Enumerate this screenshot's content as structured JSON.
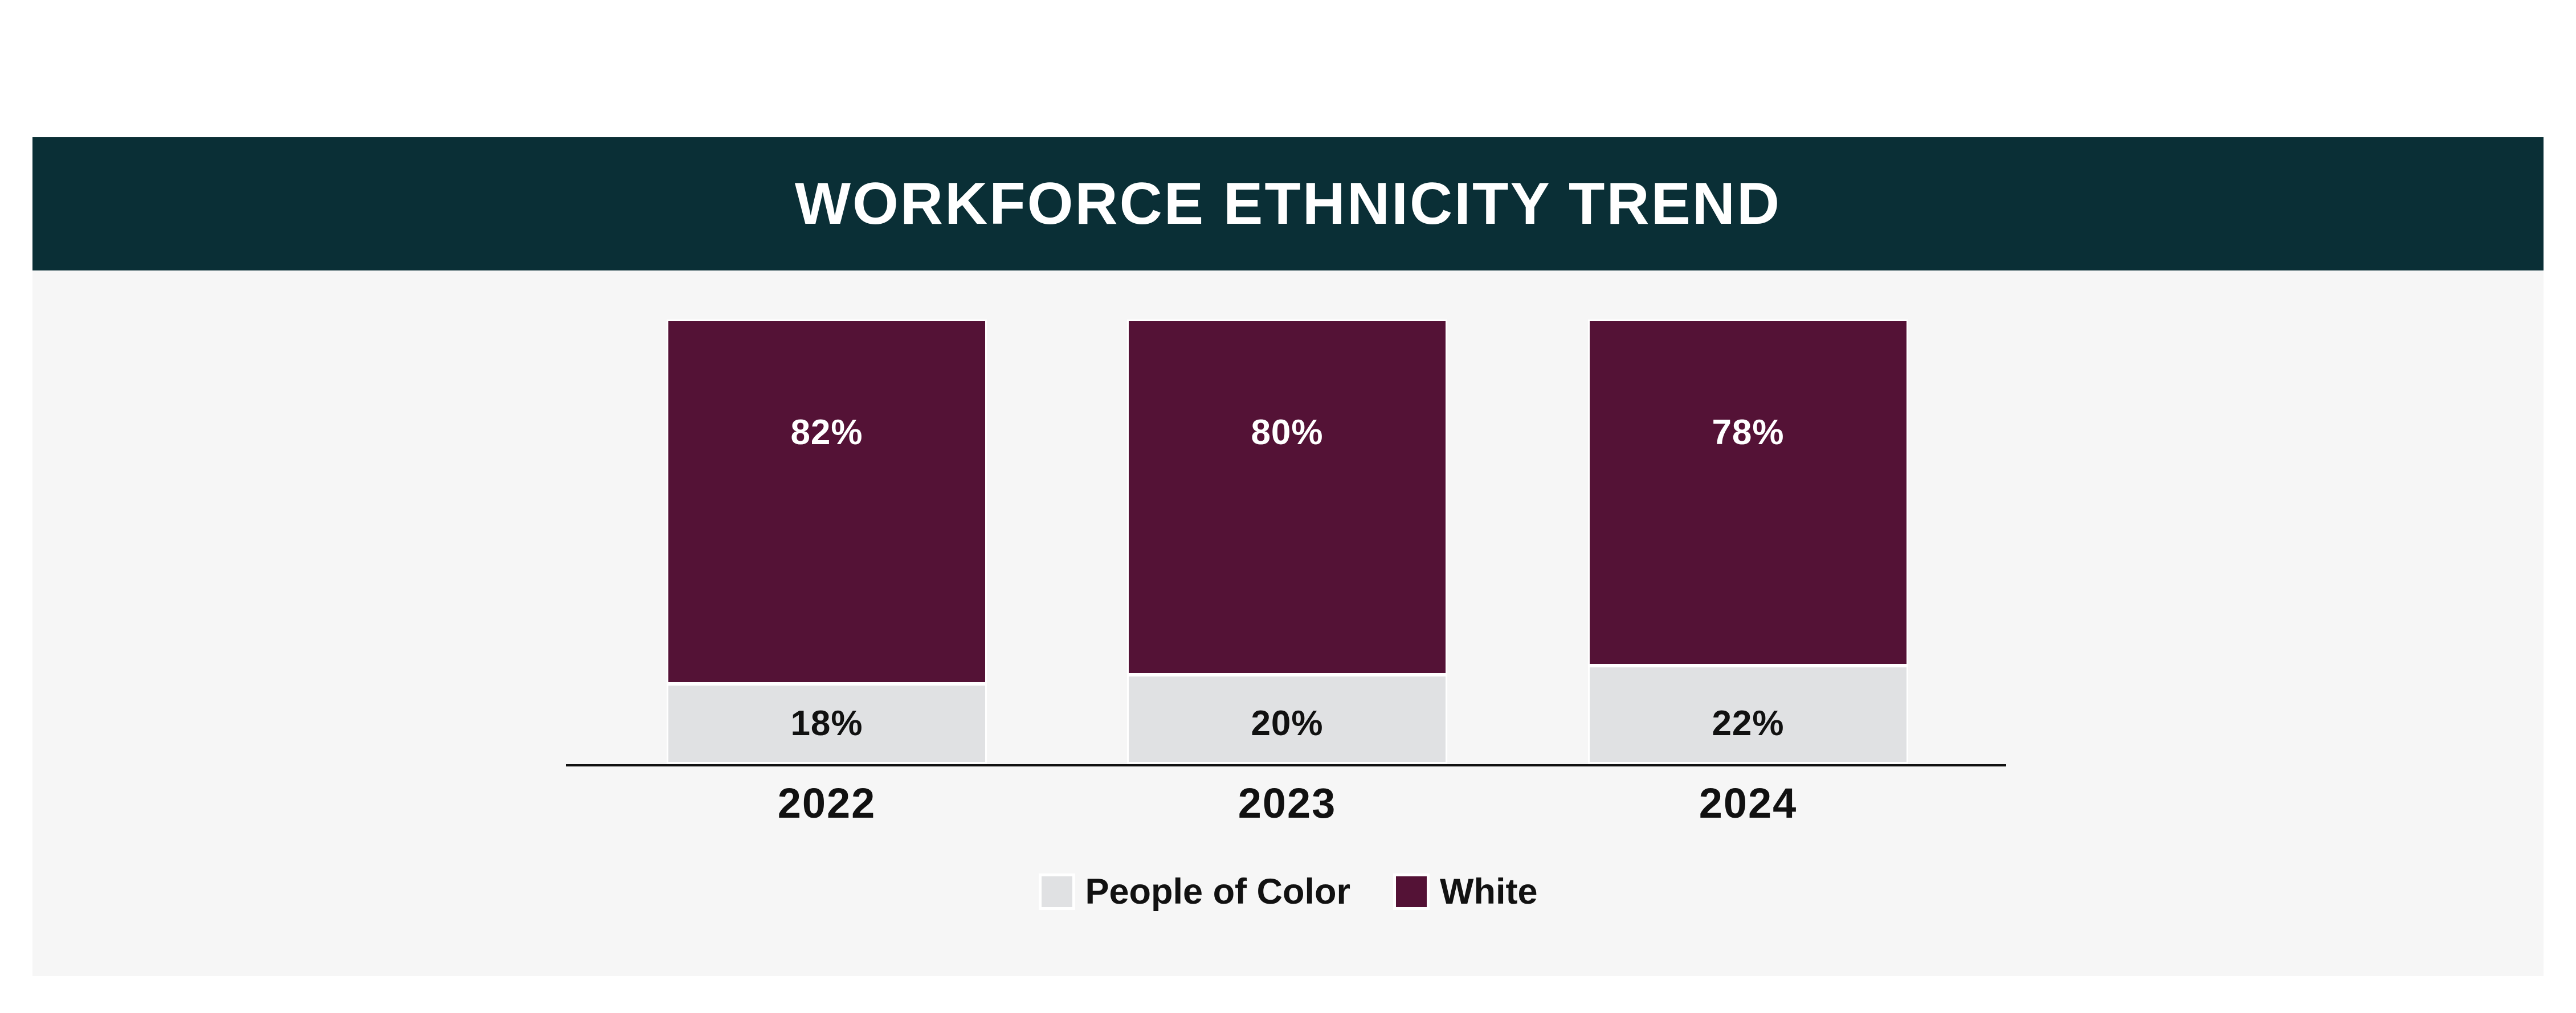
{
  "page": {
    "background_color": "#ffffff"
  },
  "card": {
    "header_background": "#0a2f36",
    "header_text_color": "#ffffff",
    "body_background": "#f6f6f6"
  },
  "chart_data": {
    "type": "bar",
    "stacked": true,
    "title": "WORKFORCE ETHNICITY TREND",
    "categories": [
      "2022",
      "2023",
      "2024"
    ],
    "series": [
      {
        "name": "People of Color",
        "color": "#e0e1e3",
        "values": [
          18,
          20,
          22
        ],
        "labels": [
          "18%",
          "20%",
          "22%"
        ],
        "label_color": "#111111"
      },
      {
        "name": "White",
        "color": "#541236",
        "values": [
          82,
          80,
          78
        ],
        "labels": [
          "82%",
          "80%",
          "78%"
        ],
        "label_color": "#ffffff"
      }
    ],
    "value_format": "percent",
    "ylim": [
      0,
      100
    ],
    "grid": false,
    "x_axis_ticks": false,
    "axis_color": "#111111",
    "legend_position": "bottom"
  }
}
